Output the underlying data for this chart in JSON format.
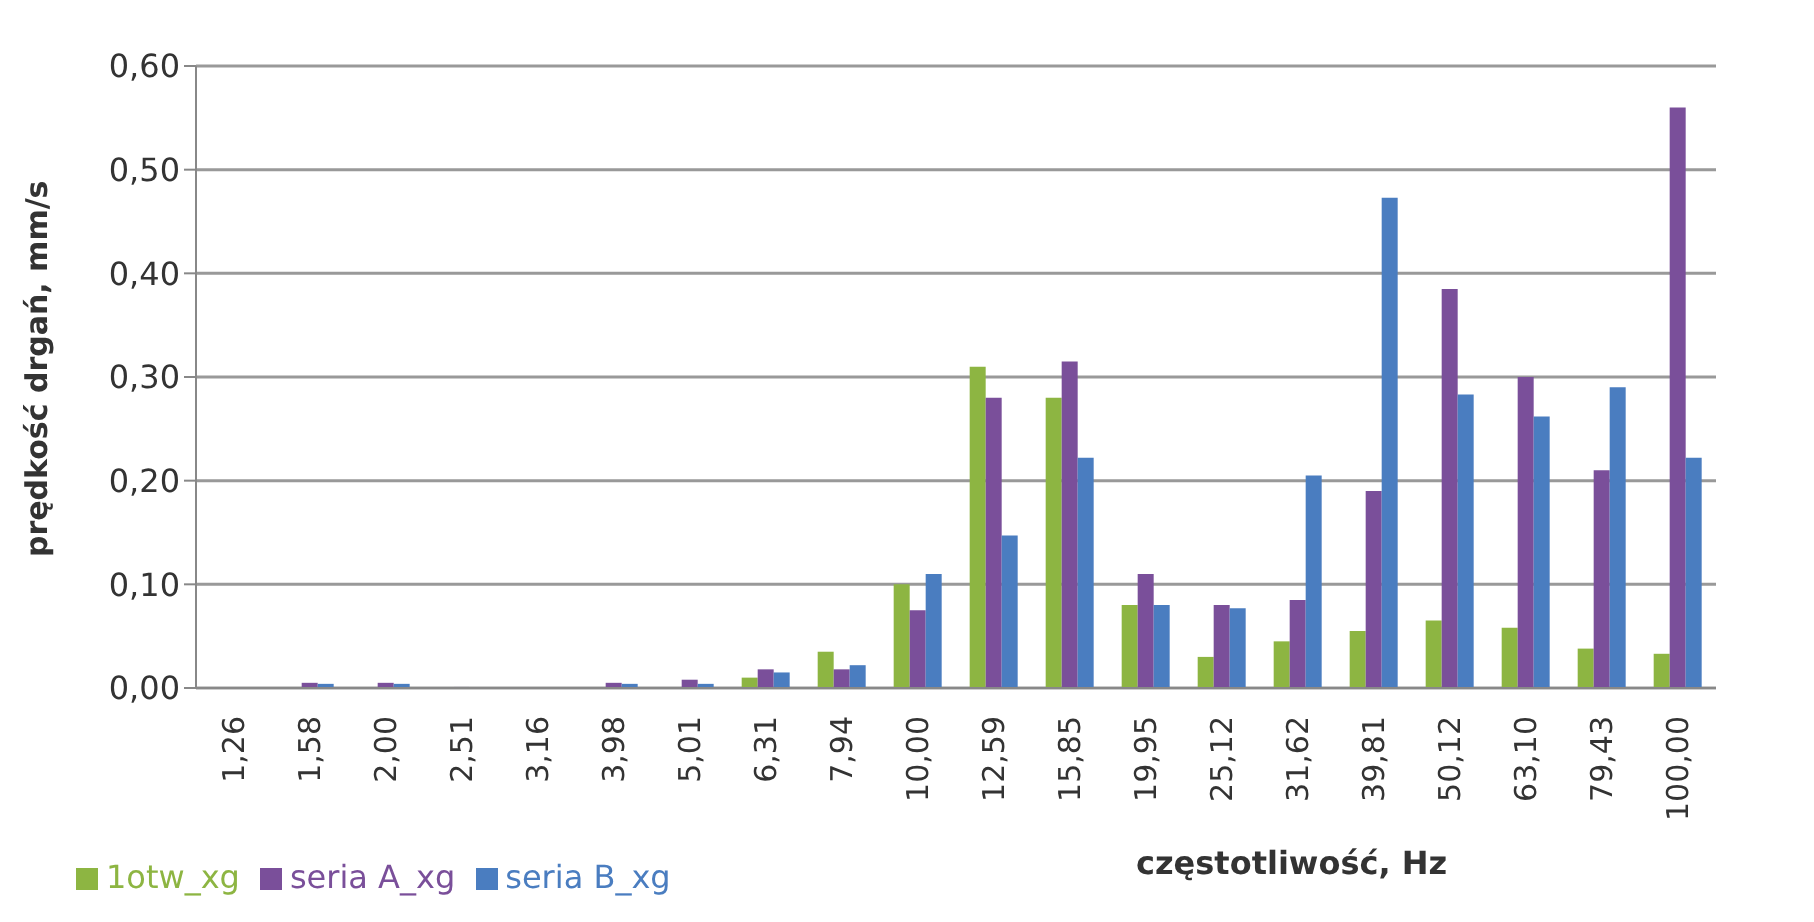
{
  "chart_data": {
    "type": "bar",
    "xlabel": "częstotliwość, Hz",
    "ylabel": "prędkość drgań, mm/s",
    "categories": [
      "1,26",
      "1,58",
      "2,00",
      "2,51",
      "3,16",
      "3,98",
      "5,01",
      "6,31",
      "7,94",
      "10,00",
      "12,59",
      "15,85",
      "19,95",
      "25,12",
      "31,62",
      "39,81",
      "50,12",
      "63,10",
      "79,43",
      "100,00"
    ],
    "series": [
      {
        "name": "1otw_xg",
        "color": "#8db542",
        "values": [
          0,
          0,
          0,
          0,
          0,
          0,
          0,
          0.01,
          0.035,
          0.1,
          0.31,
          0.28,
          0.08,
          0.03,
          0.045,
          0.055,
          0.065,
          0.058,
          0.038,
          0.033
        ]
      },
      {
        "name": "seria A_xg",
        "color": "#7a4f9a",
        "values": [
          0,
          0.005,
          0.005,
          0.001,
          0,
          0.005,
          0.008,
          0.018,
          0.018,
          0.075,
          0.28,
          0.315,
          0.11,
          0.08,
          0.085,
          0.19,
          0.385,
          0.3,
          0.21,
          0.56
        ]
      },
      {
        "name": "seria B_xg",
        "color": "#4a7dc0",
        "values": [
          0,
          0.004,
          0.004,
          0,
          0,
          0.004,
          0.004,
          0.015,
          0.022,
          0.11,
          0.147,
          0.222,
          0.08,
          0.077,
          0.205,
          0.473,
          0.283,
          0.262,
          0.29,
          0.222
        ]
      }
    ],
    "ylim": [
      0,
      0.6
    ],
    "yticks": [
      {
        "value": 0,
        "label": "0,00"
      },
      {
        "value": 0.1,
        "label": "0,10"
      },
      {
        "value": 0.2,
        "label": "0,20"
      },
      {
        "value": 0.3,
        "label": "0,30"
      },
      {
        "value": 0.4,
        "label": "0,40"
      },
      {
        "value": 0.5,
        "label": "0,50"
      },
      {
        "value": 0.6,
        "label": "0,60"
      }
    ],
    "grid": "y",
    "legend": "bottom left"
  }
}
